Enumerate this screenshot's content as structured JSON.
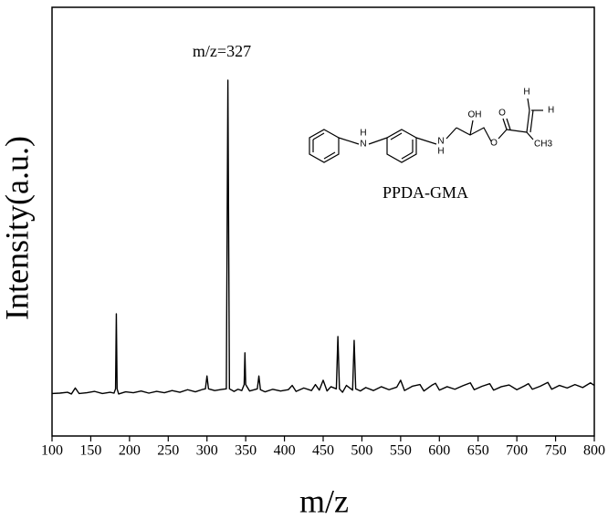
{
  "chart_data": {
    "type": "line",
    "x_label": "m/z",
    "y_label": "Intensity(a.u.)",
    "annotation": "m/z=327",
    "compound": "PPDA-GMA",
    "structure_atoms": [
      "H",
      "N",
      "N",
      "H",
      "OH",
      "O",
      "O",
      "H",
      "H",
      "CH3"
    ],
    "color": "#000000",
    "x": [
      100,
      110,
      120,
      125,
      130,
      135,
      145,
      155,
      165,
      175,
      180,
      182,
      183,
      184,
      186,
      195,
      205,
      215,
      225,
      235,
      245,
      255,
      265,
      275,
      285,
      295,
      298,
      300,
      302,
      310,
      320,
      325,
      327,
      329,
      335,
      340,
      345,
      348,
      349,
      350,
      355,
      365,
      367,
      369,
      375,
      385,
      395,
      405,
      410,
      415,
      425,
      435,
      440,
      445,
      450,
      455,
      460,
      467,
      469,
      471,
      475,
      480,
      488,
      490,
      492,
      498,
      505,
      515,
      525,
      535,
      545,
      550,
      555,
      565,
      575,
      580,
      590,
      595,
      600,
      610,
      620,
      630,
      640,
      645,
      655,
      665,
      670,
      680,
      690,
      700,
      710,
      715,
      720,
      730,
      740,
      745,
      755,
      765,
      775,
      785,
      795,
      800
    ],
    "values": [
      9.9,
      10.0,
      10.2,
      9.8,
      11.2,
      9.9,
      10.1,
      10.4,
      9.9,
      10.2,
      10.0,
      11,
      28.5,
      11,
      9.8,
      10.3,
      10.1,
      10.5,
      10.0,
      10.4,
      10.1,
      10.6,
      10.2,
      10.8,
      10.3,
      10.9,
      11,
      14,
      11,
      10.6,
      10.9,
      11,
      83,
      11,
      10.4,
      10.9,
      10.6,
      12,
      19.4,
      12,
      10.5,
      11,
      14,
      10.8,
      10.3,
      10.9,
      10.5,
      10.8,
      11.8,
      10.4,
      11.2,
      10.6,
      12,
      10.7,
      13,
      10.5,
      11.5,
      11,
      23.2,
      11,
      10.2,
      11.8,
      10.7,
      22.3,
      11,
      10.5,
      11.3,
      10.6,
      11.5,
      10.8,
      11.4,
      13,
      10.6,
      11.6,
      12,
      10.5,
      11.8,
      12.3,
      10.7,
      11.5,
      10.9,
      11.7,
      12.4,
      10.8,
      11.6,
      12.2,
      10.7,
      11.5,
      11.9,
      10.8,
      11.7,
      12.2,
      10.9,
      11.6,
      12.5,
      10.9,
      11.8,
      11.2,
      12.0,
      11.3,
      12.4,
      11.8
    ],
    "xlim": [
      100,
      800
    ],
    "ylim": [
      0,
      100
    ],
    "xticks": [
      100,
      150,
      200,
      250,
      300,
      350,
      400,
      450,
      500,
      550,
      600,
      650,
      700,
      750,
      800
    ]
  }
}
